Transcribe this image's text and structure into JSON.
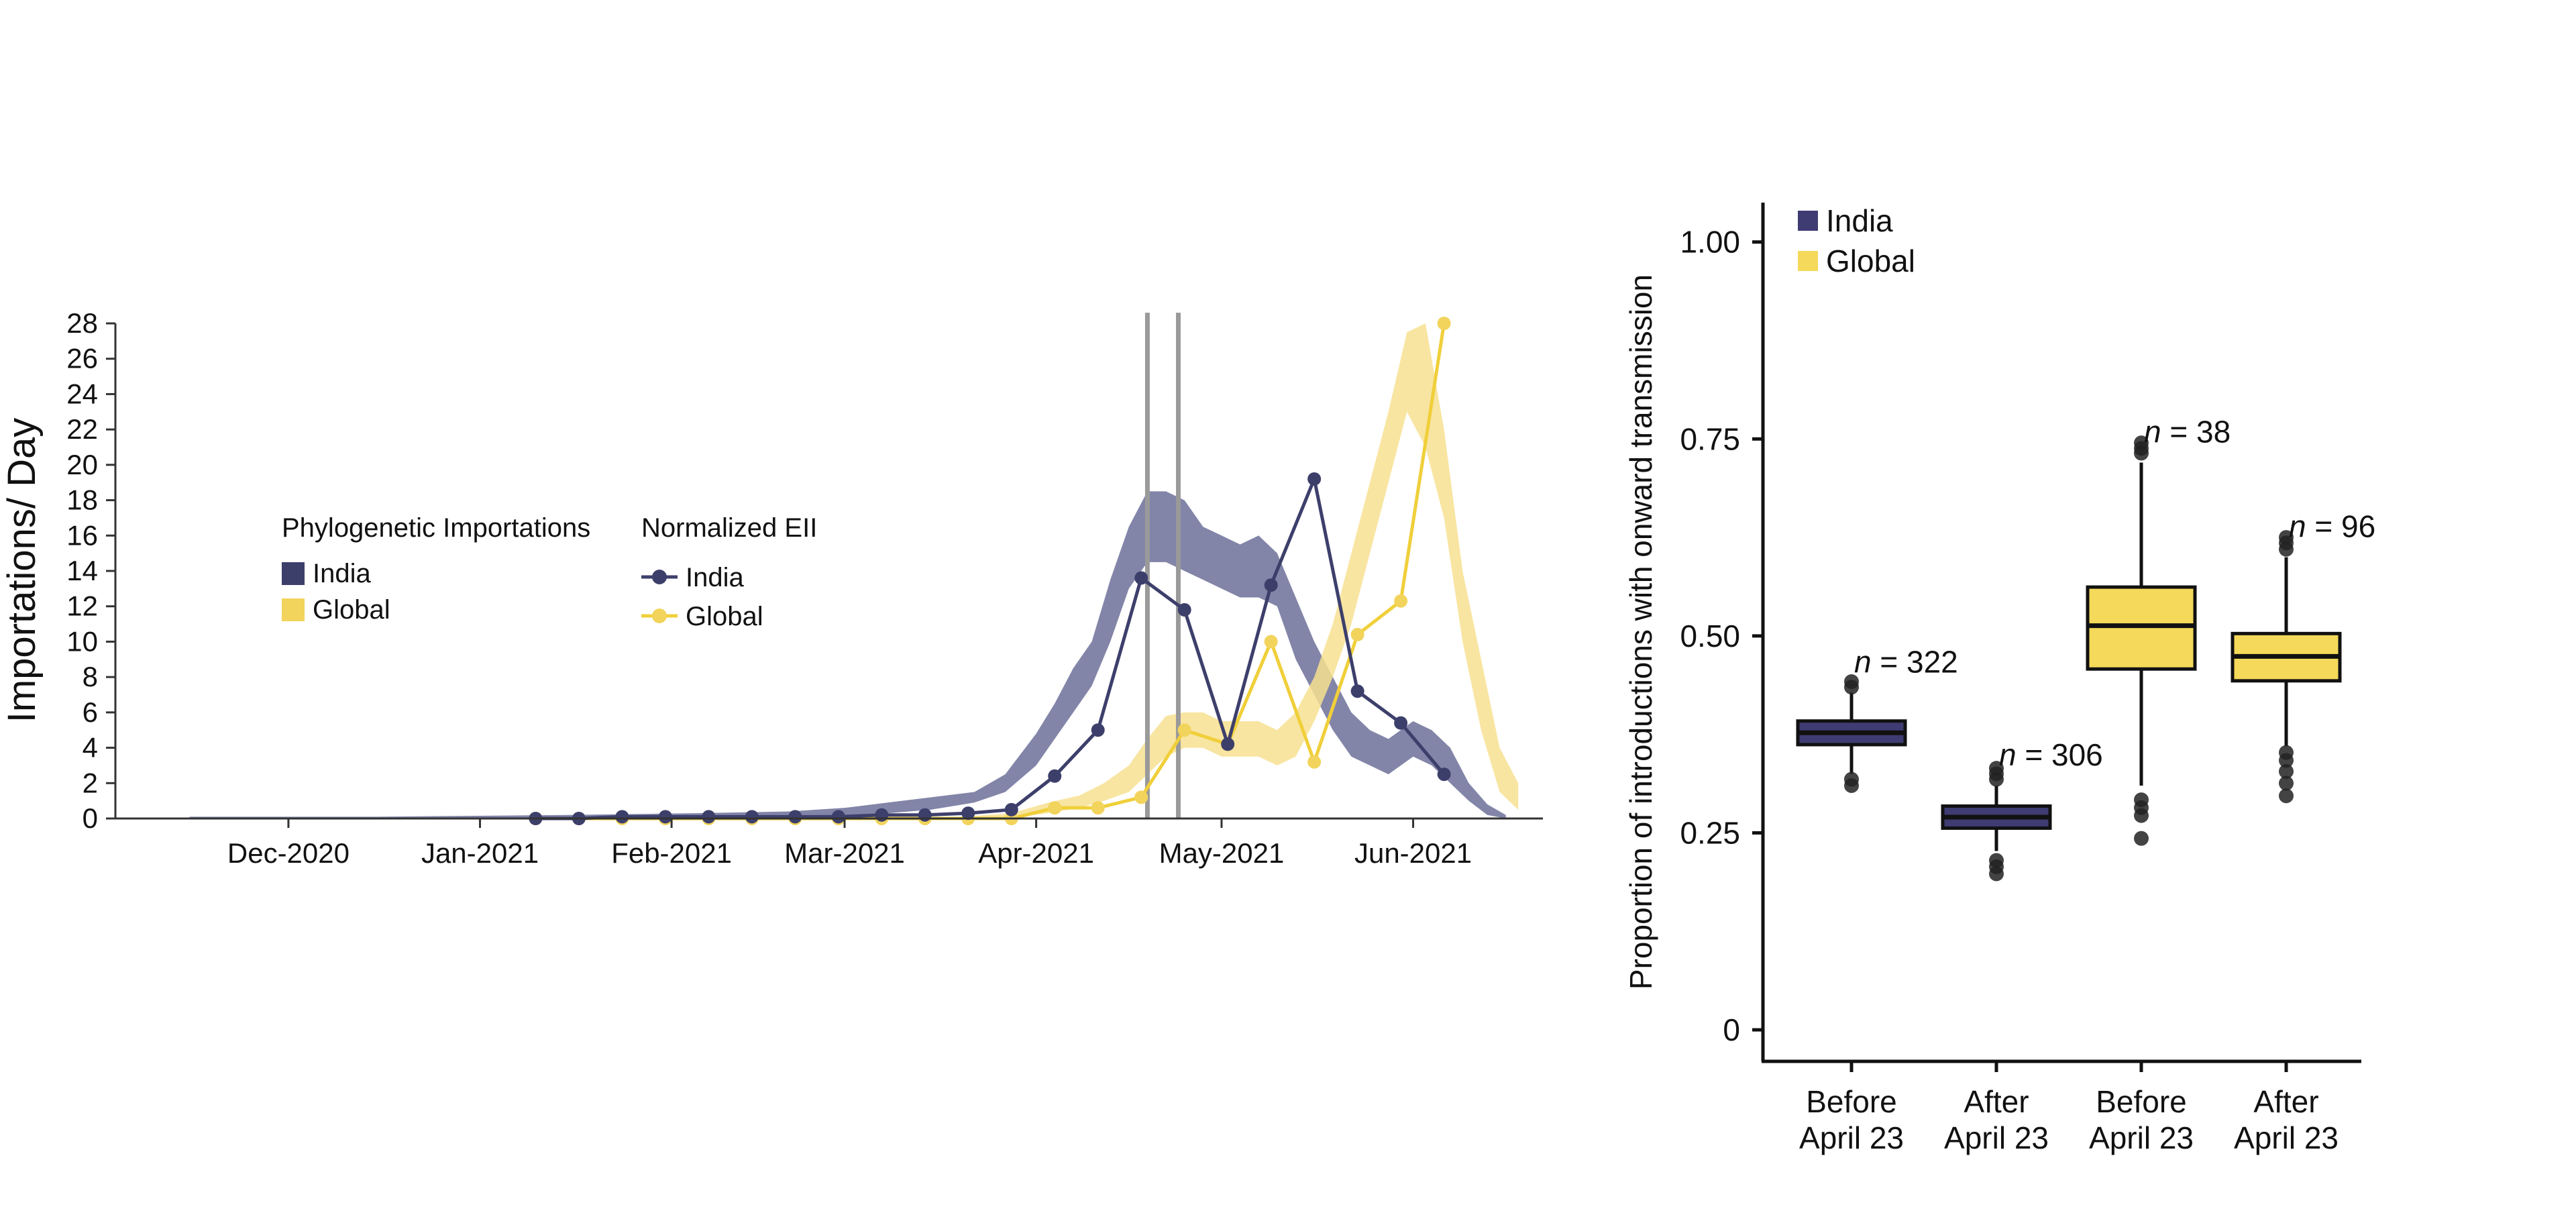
{
  "colors": {
    "india": "#3d3f6b",
    "india_band": "#7b7ea3",
    "global": "#f2d45c",
    "global_band": "#f7e190",
    "global_line": "#f0cf3a",
    "vline": "#9a9a9a",
    "box_india": "#3f3c73",
    "box_global": "#f4d95a"
  },
  "chart_data": [
    {
      "type": "line",
      "ylabel": "Importations/ Day",
      "ylim": [
        0,
        28
      ],
      "yticks": [
        0,
        2,
        4,
        6,
        8,
        10,
        12,
        14,
        16,
        18,
        20,
        22,
        24,
        26,
        28
      ],
      "xlim": [
        "2020-11-03",
        "2021-06-22"
      ],
      "xticks": [
        {
          "date": "2020-12-01",
          "label": "Dec-2020"
        },
        {
          "date": "2021-01-01",
          "label": "Jan-2021"
        },
        {
          "date": "2021-02-01",
          "label": "Feb-2021"
        },
        {
          "date": "2021-03-01",
          "label": "Mar-2021"
        },
        {
          "date": "2021-04-01",
          "label": "Apr-2021"
        },
        {
          "date": "2021-05-01",
          "label": "May-2021"
        },
        {
          "date": "2021-06-01",
          "label": "Jun-2021"
        }
      ],
      "vlines": [
        "2021-04-19",
        "2021-04-24"
      ],
      "legend": {
        "bands_title": "Phylogenetic Importations",
        "lines_title": "Normalized EII",
        "india": "India",
        "global": "Global"
      },
      "bands": [
        {
          "name": "India",
          "points": [
            [
              "2020-11-15",
              0.0,
              0.1
            ],
            [
              "2020-12-15",
              0.0,
              0.1
            ],
            [
              "2021-01-15",
              0.0,
              0.2
            ],
            [
              "2021-02-05",
              0.05,
              0.3
            ],
            [
              "2021-02-20",
              0.1,
              0.4
            ],
            [
              "2021-03-01",
              0.2,
              0.6
            ],
            [
              "2021-03-08",
              0.3,
              0.9
            ],
            [
              "2021-03-15",
              0.5,
              1.2
            ],
            [
              "2021-03-22",
              0.9,
              1.5
            ],
            [
              "2021-03-27",
              1.5,
              2.5
            ],
            [
              "2021-04-01",
              3.0,
              4.8
            ],
            [
              "2021-04-04",
              4.5,
              6.5
            ],
            [
              "2021-04-07",
              6.0,
              8.5
            ],
            [
              "2021-04-10",
              7.5,
              10.0
            ],
            [
              "2021-04-13",
              10.0,
              13.5
            ],
            [
              "2021-04-16",
              13.0,
              16.5
            ],
            [
              "2021-04-19",
              14.5,
              18.5
            ],
            [
              "2021-04-22",
              14.5,
              18.5
            ],
            [
              "2021-04-25",
              14.0,
              18.0
            ],
            [
              "2021-04-28",
              13.5,
              16.5
            ],
            [
              "2021-05-01",
              13.0,
              16.0
            ],
            [
              "2021-05-04",
              12.5,
              15.5
            ],
            [
              "2021-05-07",
              12.5,
              16.0
            ],
            [
              "2021-05-10",
              12.0,
              15.0
            ],
            [
              "2021-05-13",
              9.0,
              12.5
            ],
            [
              "2021-05-16",
              7.0,
              10.0
            ],
            [
              "2021-05-19",
              5.0,
              8.0
            ],
            [
              "2021-05-22",
              3.5,
              6.0
            ],
            [
              "2021-05-25",
              3.0,
              5.0
            ],
            [
              "2021-05-28",
              2.5,
              4.5
            ],
            [
              "2021-06-01",
              3.5,
              5.5
            ],
            [
              "2021-06-04",
              3.0,
              5.0
            ],
            [
              "2021-06-07",
              2.0,
              4.0
            ],
            [
              "2021-06-10",
              1.0,
              2.0
            ],
            [
              "2021-06-13",
              0.2,
              0.8
            ],
            [
              "2021-06-16",
              0.0,
              0.2
            ]
          ]
        },
        {
          "name": "Global",
          "points": [
            [
              "2021-03-20",
              0.0,
              0.1
            ],
            [
              "2021-03-28",
              0.05,
              0.3
            ],
            [
              "2021-04-03",
              0.3,
              0.9
            ],
            [
              "2021-04-08",
              0.6,
              1.3
            ],
            [
              "2021-04-12",
              1.0,
              2.0
            ],
            [
              "2021-04-16",
              1.5,
              3.0
            ],
            [
              "2021-04-19",
              2.5,
              4.5
            ],
            [
              "2021-04-22",
              3.5,
              5.8
            ],
            [
              "2021-04-25",
              4.0,
              6.0
            ],
            [
              "2021-04-28",
              4.0,
              6.0
            ],
            [
              "2021-05-01",
              3.5,
              5.5
            ],
            [
              "2021-05-04",
              3.5,
              5.5
            ],
            [
              "2021-05-07",
              3.5,
              5.5
            ],
            [
              "2021-05-10",
              3.0,
              5.0
            ],
            [
              "2021-05-13",
              3.5,
              6.0
            ],
            [
              "2021-05-16",
              5.5,
              8.0
            ],
            [
              "2021-05-19",
              8.0,
              11.0
            ],
            [
              "2021-05-22",
              11.0,
              15.0
            ],
            [
              "2021-05-25",
              15.0,
              19.0
            ],
            [
              "2021-05-28",
              19.0,
              23.0
            ],
            [
              "2021-05-31",
              23.0,
              27.5
            ],
            [
              "2021-06-03",
              21.0,
              28.0
            ],
            [
              "2021-06-06",
              17.0,
              22.0
            ],
            [
              "2021-06-09",
              10.0,
              14.0
            ],
            [
              "2021-06-12",
              5.0,
              9.0
            ],
            [
              "2021-06-15",
              1.5,
              4.0
            ],
            [
              "2021-06-18",
              0.5,
              2.0
            ]
          ]
        }
      ],
      "series": [
        {
          "name": "India",
          "points": [
            [
              "2021-01-10",
              0.0
            ],
            [
              "2021-01-17",
              0.0
            ],
            [
              "2021-01-24",
              0.1
            ],
            [
              "2021-01-31",
              0.1
            ],
            [
              "2021-02-07",
              0.1
            ],
            [
              "2021-02-14",
              0.1
            ],
            [
              "2021-02-21",
              0.1
            ],
            [
              "2021-02-28",
              0.1
            ],
            [
              "2021-03-07",
              0.2
            ],
            [
              "2021-03-14",
              0.2
            ],
            [
              "2021-03-21",
              0.3
            ],
            [
              "2021-03-28",
              0.5
            ],
            [
              "2021-04-04",
              2.4
            ],
            [
              "2021-04-11",
              5.0
            ],
            [
              "2021-04-18",
              13.6
            ],
            [
              "2021-04-25",
              11.8
            ],
            [
              "2021-05-02",
              4.2
            ],
            [
              "2021-05-09",
              13.2
            ],
            [
              "2021-05-16",
              19.2
            ],
            [
              "2021-05-23",
              7.2
            ],
            [
              "2021-05-30",
              5.4
            ],
            [
              "2021-06-06",
              2.5
            ]
          ]
        },
        {
          "name": "Global",
          "points": [
            [
              "2021-01-10",
              0.0
            ],
            [
              "2021-01-17",
              0.0
            ],
            [
              "2021-01-24",
              0.0
            ],
            [
              "2021-01-31",
              0.0
            ],
            [
              "2021-02-07",
              0.0
            ],
            [
              "2021-02-14",
              0.0
            ],
            [
              "2021-02-21",
              0.0
            ],
            [
              "2021-02-28",
              0.0
            ],
            [
              "2021-03-07",
              0.0
            ],
            [
              "2021-03-14",
              0.0
            ],
            [
              "2021-03-21",
              0.0
            ],
            [
              "2021-03-28",
              0.0
            ],
            [
              "2021-04-04",
              0.6
            ],
            [
              "2021-04-11",
              0.6
            ],
            [
              "2021-04-18",
              1.2
            ],
            [
              "2021-04-25",
              5.0
            ],
            [
              "2021-05-02",
              4.2
            ],
            [
              "2021-05-09",
              10.0
            ],
            [
              "2021-05-16",
              3.2
            ],
            [
              "2021-05-23",
              10.4
            ],
            [
              "2021-05-30",
              12.3
            ],
            [
              "2021-06-06",
              28.0
            ]
          ]
        }
      ]
    },
    {
      "type": "box",
      "ylabel": "Proportion of introductions with onward transmission",
      "ylim": [
        -0.04,
        1.05
      ],
      "yticks": [
        {
          "value": 0,
          "label": "0"
        },
        {
          "value": 0.25,
          "label": "0.25"
        },
        {
          "value": 0.5,
          "label": "0.50"
        },
        {
          "value": 0.75,
          "label": "0.75"
        },
        {
          "value": 1.0,
          "label": "1.00"
        }
      ],
      "legend": [
        "India",
        "Global"
      ],
      "categories": [
        {
          "line1": "Before",
          "line2": "April 23"
        },
        {
          "line1": "After",
          "line2": "April 23"
        },
        {
          "line1": "Before",
          "line2": "April 23"
        },
        {
          "line1": "After",
          "line2": "April 23"
        }
      ],
      "boxes": [
        {
          "group": "India",
          "whisker_low": 0.325,
          "q1": 0.362,
          "median": 0.377,
          "q3": 0.392,
          "whisker_high": 0.428,
          "outliers": [
            0.31,
            0.318,
            0.435,
            0.442
          ],
          "n_prefix": "n",
          "n_value": "= 322"
        },
        {
          "group": "India",
          "whisker_low": 0.227,
          "q1": 0.256,
          "median": 0.27,
          "q3": 0.284,
          "whisker_high": 0.31,
          "outliers": [
            0.198,
            0.207,
            0.215,
            0.318,
            0.325,
            0.332
          ],
          "n_prefix": "n",
          "n_value": "= 306"
        },
        {
          "group": "Global",
          "whisker_low": 0.31,
          "q1": 0.458,
          "median": 0.513,
          "q3": 0.562,
          "whisker_high": 0.72,
          "outliers": [
            0.243,
            0.272,
            0.282,
            0.292,
            0.732,
            0.738,
            0.745
          ],
          "n_prefix": "n",
          "n_value": "= 38"
        },
        {
          "group": "Global",
          "whisker_low": 0.36,
          "q1": 0.443,
          "median": 0.474,
          "q3": 0.503,
          "whisker_high": 0.6,
          "outliers": [
            0.297,
            0.313,
            0.328,
            0.342,
            0.352,
            0.61,
            0.618,
            0.625
          ],
          "n_prefix": "n",
          "n_value": "= 96"
        }
      ]
    }
  ]
}
